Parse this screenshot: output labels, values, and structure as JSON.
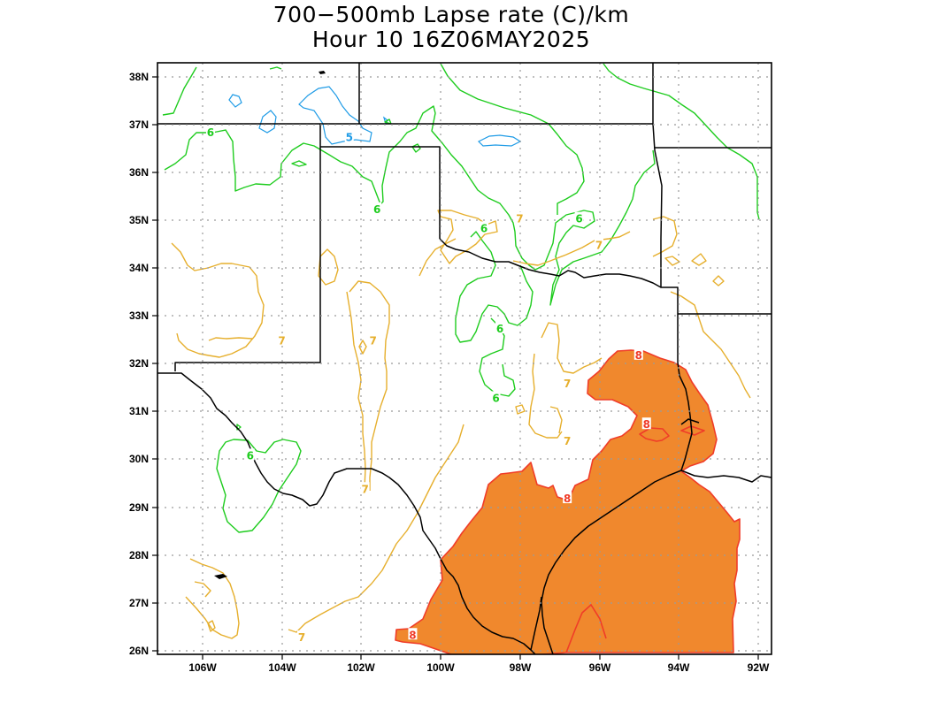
{
  "title": {
    "line1": "700−500mb Lapse rate (C)/km",
    "line2": "Hour 10 16Z06MAY2025"
  },
  "axes": {
    "lat_labels": [
      "38N",
      "37N",
      "36N",
      "35N",
      "34N",
      "33N",
      "32N",
      "31N",
      "30N",
      "29N",
      "28N",
      "27N",
      "26N"
    ],
    "lon_labels": [
      "106W",
      "104W",
      "102W",
      "100W",
      "98W",
      "96W",
      "94W",
      "92W"
    ],
    "lat_range": [
      25.95,
      38.3
    ],
    "lon_range": [
      -107.2,
      -91.8
    ],
    "grid": true
  },
  "contour_levels": {
    "level_5": "5",
    "level_6": "6",
    "level_7": "7",
    "level_8": "8"
  },
  "colors": {
    "level_5": "#1e9be6",
    "level_6": "#1ecc1e",
    "level_7": "#e6af2d",
    "level_8_line": "#f03c28",
    "level_8_fill": "#f0882d",
    "boundaries": "#000000",
    "grid": "#9a9a9a"
  },
  "chart_data": {
    "type": "map",
    "title": "700−500mb Lapse rate (C)/km",
    "subtitle": "Hour 10 16Z06MAY2025",
    "variable": "700-500mb lapse rate",
    "units": "C/km",
    "contour_values": [
      5,
      6,
      7,
      8
    ],
    "shaded": "lapse rate >= 8 C/km",
    "region": "Texas / Southern Plains",
    "label_positions": [
      {
        "value": "5",
        "lon": -102.3,
        "lat": 36.75
      },
      {
        "value": "6",
        "lon": -105.8,
        "lat": 36.85
      },
      {
        "value": "6",
        "lon": -101.6,
        "lat": 35.25
      },
      {
        "value": "6",
        "lon": -98.9,
        "lat": 34.85
      },
      {
        "value": "6",
        "lon": -96.5,
        "lat": 35.05
      },
      {
        "value": "6",
        "lon": -98.5,
        "lat": 32.75
      },
      {
        "value": "6",
        "lon": -98.6,
        "lat": 31.3
      },
      {
        "value": "6",
        "lon": -104.8,
        "lat": 30.1
      },
      {
        "value": "7",
        "lon": -98.0,
        "lat": 35.05
      },
      {
        "value": "7",
        "lon": -96.0,
        "lat": 34.5
      },
      {
        "value": "7",
        "lon": -104.0,
        "lat": 32.5
      },
      {
        "value": "7",
        "lon": -101.7,
        "lat": 32.5
      },
      {
        "value": "7",
        "lon": -96.8,
        "lat": 31.6
      },
      {
        "value": "7",
        "lon": -96.8,
        "lat": 30.4
      },
      {
        "value": "7",
        "lon": -101.9,
        "lat": 29.4
      },
      {
        "value": "7",
        "lon": -103.5,
        "lat": 26.3
      },
      {
        "value": "8",
        "lon": -95.0,
        "lat": 32.2
      },
      {
        "value": "8",
        "lon": -94.8,
        "lat": 30.75
      },
      {
        "value": "8",
        "lon": -96.8,
        "lat": 29.2
      },
      {
        "value": "8",
        "lon": -100.7,
        "lat": 26.35
      }
    ]
  }
}
